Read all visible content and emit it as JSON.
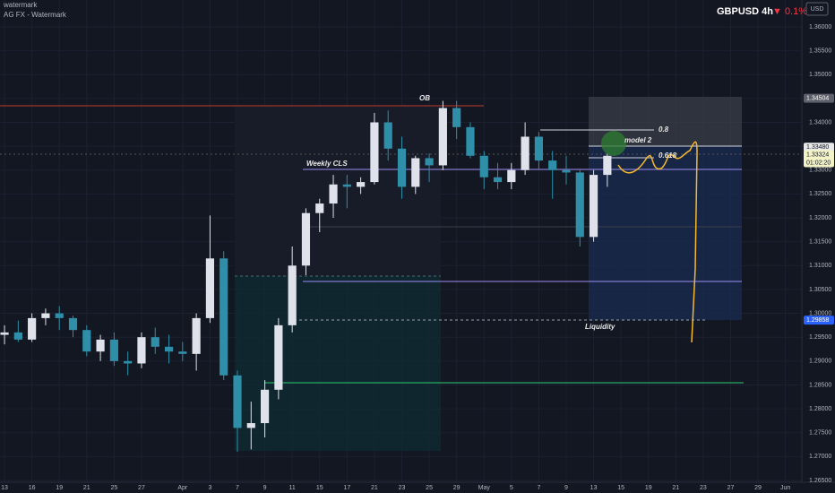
{
  "chart_data": {
    "type": "candlestick",
    "watermark": "watermark",
    "source": "AG FX - Watermark",
    "symbol": "GBPUSD 4h",
    "change": "▼ 0.1%",
    "currency": "USD",
    "up_color": "#dfe2ea",
    "down_color": "#2f8fa8",
    "x": [
      0,
      1,
      2,
      3,
      4,
      5,
      6,
      7,
      8,
      9,
      10,
      11,
      12,
      13,
      14,
      15,
      16,
      17,
      18,
      19,
      20,
      21,
      22,
      23,
      24,
      25,
      26,
      27,
      28,
      29,
      30,
      31,
      32,
      33,
      34,
      35,
      36,
      37,
      38,
      39,
      40,
      41,
      42,
      43,
      44
    ],
    "open": [
      1.2955,
      1.296,
      1.2945,
      1.299,
      1.3,
      1.299,
      1.2965,
      1.292,
      1.2945,
      1.29,
      1.2895,
      1.295,
      1.293,
      1.292,
      1.2915,
      1.299,
      1.3115,
      1.287,
      1.276,
      1.277,
      1.284,
      1.2975,
      1.31,
      1.321,
      1.323,
      1.327,
      1.3265,
      1.3275,
      1.34,
      1.3345,
      1.3265,
      1.3325,
      1.331,
      1.343,
      1.339,
      1.333,
      1.3285,
      1.3275,
      1.33,
      1.337,
      1.332,
      1.33,
      1.3295,
      1.316,
      1.329
    ],
    "high": [
      1.2975,
      1.2985,
      1.3,
      1.301,
      1.3015,
      1.2995,
      1.2975,
      1.2955,
      1.296,
      1.292,
      1.296,
      1.297,
      1.2955,
      1.294,
      1.3,
      1.3205,
      1.313,
      1.288,
      1.2815,
      1.286,
      1.299,
      1.314,
      1.322,
      1.324,
      1.329,
      1.329,
      1.3285,
      1.342,
      1.3425,
      1.337,
      1.333,
      1.3335,
      1.3445,
      1.3445,
      1.34,
      1.334,
      1.3315,
      1.3315,
      1.34,
      1.338,
      1.334,
      1.333,
      1.33,
      1.33,
      1.3335
    ],
    "low": [
      1.2935,
      1.294,
      1.294,
      1.2975,
      1.2965,
      1.295,
      1.291,
      1.29,
      1.289,
      1.287,
      1.2885,
      1.2915,
      1.2895,
      1.29,
      1.288,
      1.298,
      1.286,
      1.271,
      1.2715,
      1.274,
      1.282,
      1.296,
      1.308,
      1.317,
      1.32,
      1.322,
      1.325,
      1.327,
      1.332,
      1.324,
      1.325,
      1.3275,
      1.33,
      1.3365,
      1.3325,
      1.326,
      1.326,
      1.326,
      1.329,
      1.33,
      1.324,
      1.327,
      1.314,
      1.315,
      1.3265
    ],
    "close": [
      1.296,
      1.2945,
      1.299,
      1.3,
      1.299,
      1.2965,
      1.292,
      1.2945,
      1.29,
      1.2895,
      1.295,
      1.293,
      1.292,
      1.2915,
      1.299,
      1.3115,
      1.287,
      1.276,
      1.277,
      1.284,
      1.2975,
      1.31,
      1.321,
      1.323,
      1.327,
      1.3265,
      1.3275,
      1.34,
      1.3345,
      1.3265,
      1.3325,
      1.331,
      1.343,
      1.339,
      1.333,
      1.3285,
      1.3275,
      1.33,
      1.337,
      1.332,
      1.33,
      1.3295,
      1.316,
      1.329,
      1.333
    ],
    "xlim": [
      -0.33,
      58.2
    ],
    "xticks": [
      {
        "value": 0,
        "label": "13"
      },
      {
        "value": 2,
        "label": "16"
      },
      {
        "value": 4,
        "label": "19"
      },
      {
        "value": 6,
        "label": "21"
      },
      {
        "value": 8,
        "label": "25"
      },
      {
        "value": 10,
        "label": "27"
      },
      {
        "value": 13,
        "label": "Apr"
      },
      {
        "value": 15,
        "label": "3"
      },
      {
        "value": 17,
        "label": "7"
      },
      {
        "value": 19,
        "label": "9"
      },
      {
        "value": 21,
        "label": "11"
      },
      {
        "value": 23,
        "label": "15"
      },
      {
        "value": 25,
        "label": "17"
      },
      {
        "value": 27,
        "label": "21"
      },
      {
        "value": 29,
        "label": "23"
      },
      {
        "value": 31,
        "label": "25"
      },
      {
        "value": 33,
        "label": "29"
      },
      {
        "value": 35,
        "label": "May"
      },
      {
        "value": 37,
        "label": "5"
      },
      {
        "value": 39,
        "label": "7"
      },
      {
        "value": 41,
        "label": "9"
      },
      {
        "value": 43,
        "label": "13"
      },
      {
        "value": 45,
        "label": "15"
      },
      {
        "value": 47,
        "label": "19"
      },
      {
        "value": 49,
        "label": "21"
      },
      {
        "value": 51,
        "label": "23"
      },
      {
        "value": 53,
        "label": "27"
      },
      {
        "value": 55,
        "label": "29"
      },
      {
        "value": 57,
        "label": "Jun"
      }
    ],
    "ylim": [
      1.26462,
      1.36563
    ],
    "yticks": [
      {
        "value": 1.36,
        "label": "1.36000"
      },
      {
        "value": 1.355,
        "label": "1.35500"
      },
      {
        "value": 1.35,
        "label": "1.35000"
      },
      {
        "value": 1.345,
        "label": "1.34500"
      },
      {
        "value": 1.34,
        "label": "1.34000"
      },
      {
        "value": 1.335,
        "label": "1.33500"
      },
      {
        "value": 1.33,
        "label": "1.33000"
      },
      {
        "value": 1.325,
        "label": "1.32500"
      },
      {
        "value": 1.32,
        "label": "1.32000"
      },
      {
        "value": 1.315,
        "label": "1.31500"
      },
      {
        "value": 1.31,
        "label": "1.31000"
      },
      {
        "value": 1.305,
        "label": "1.30500"
      },
      {
        "value": 1.3,
        "label": "1.30000"
      },
      {
        "value": 1.295,
        "label": "1.29500"
      },
      {
        "value": 1.29,
        "label": "1.29000"
      },
      {
        "value": 1.285,
        "label": "1.28500"
      },
      {
        "value": 1.28,
        "label": "1.28000"
      },
      {
        "value": 1.275,
        "label": "1.27500"
      },
      {
        "value": 1.27,
        "label": "1.27000"
      },
      {
        "value": 1.265,
        "label": "1.26500"
      }
    ],
    "grid": true,
    "price_labels": [
      {
        "value": 1.34504,
        "label": "1.34504",
        "color": "#5d606b"
      },
      {
        "value": 1.3348,
        "label": "1.33480",
        "color": "#e8e8e8"
      },
      {
        "value": 1.29858,
        "label": "1.29858",
        "color": "#2962ff"
      }
    ],
    "last_price": {
      "value": 1.33324,
      "label": "1.33324",
      "countdown": "01:02:20",
      "color": "#f3f3c6"
    },
    "annotations": [
      "OB",
      "Weekly CLS",
      "0.8",
      "model 2",
      "0.618",
      "Liquidity"
    ]
  }
}
